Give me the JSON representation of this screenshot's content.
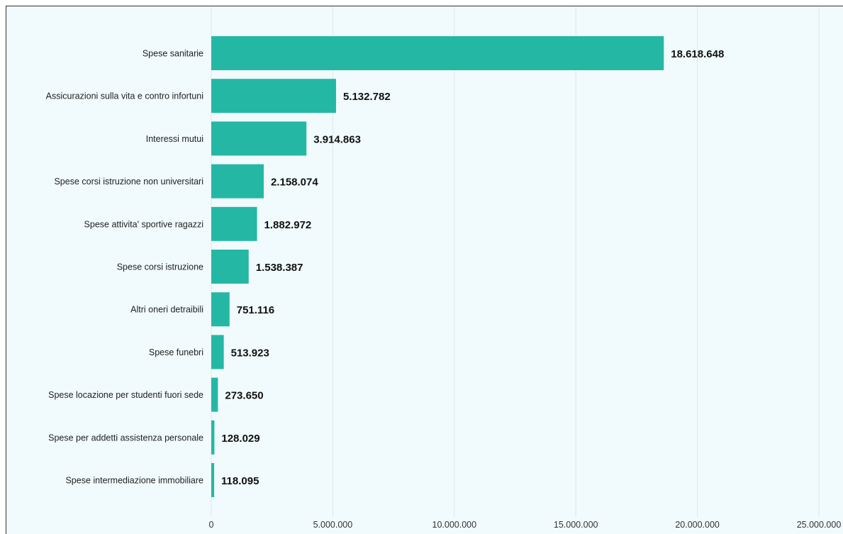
{
  "chart_data": {
    "type": "bar",
    "orientation": "horizontal",
    "categories": [
      "Spese sanitarie",
      "Assicurazioni sulla vita e contro infortuni",
      "Interessi mutui",
      "Spese corsi istruzione non universitari",
      "Spese attivita' sportive ragazzi",
      "Spese corsi istruzione",
      "Altri oneri detraibili",
      "Spese funebri",
      "Spese locazione per studenti fuori sede",
      "Spese per addetti assistenza personale",
      "Spese intermediazione immobiliare"
    ],
    "values": [
      18618648,
      5132782,
      3914863,
      2158074,
      1882972,
      1538387,
      751116,
      513923,
      273650,
      128029,
      118095
    ],
    "value_labels": [
      "18.618.648",
      "5.132.782",
      "3.914.863",
      "2.158.074",
      "1.882.972",
      "1.538.387",
      "751.116",
      "513.923",
      "273.650",
      "128.029",
      "118.095"
    ],
    "xlim": [
      0,
      25000000
    ],
    "xticks": [
      0,
      5000000,
      10000000,
      15000000,
      20000000,
      25000000
    ],
    "xtick_labels": [
      "0",
      "5.000.000",
      "10.000.000",
      "15.000.000",
      "20.000.000",
      "25.000.000"
    ],
    "grid": true,
    "bar_color": "#24b8a4",
    "title": "",
    "xlabel": "",
    "ylabel": ""
  }
}
